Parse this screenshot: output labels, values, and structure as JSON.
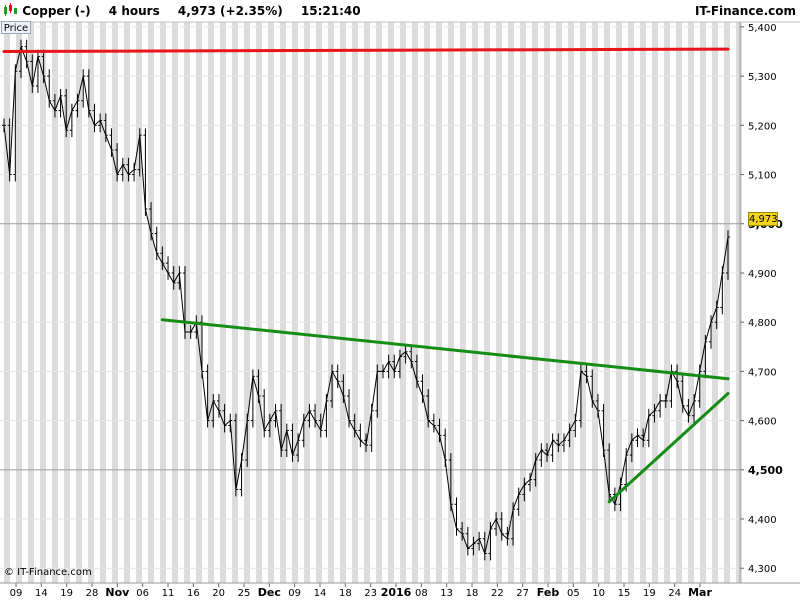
{
  "header": {
    "instrument": "Copper (-)",
    "period": "4 hours",
    "last": "4,973 (+2.35%)",
    "time": "15:21:40",
    "source": "IT-Finance.com"
  },
  "price_tag": "Price",
  "copyright": "© IT-Finance.com",
  "last_price_label": "4,973",
  "colors": {
    "resistance": "#e8141a",
    "trend": "#158c16",
    "stripe": "#dcdcdc",
    "candle": "#000000",
    "badge": "#f3d21e"
  },
  "chart_data": {
    "type": "line",
    "title": "",
    "xlabel": "",
    "ylabel": "",
    "ylim": [
      4270,
      5410
    ],
    "y_ticks": [
      "4,300",
      "4,400",
      "4,500",
      "4,600",
      "4,700",
      "4,800",
      "4,900",
      "5,000",
      "5,100",
      "5,200",
      "5,300",
      "5,400"
    ],
    "y_ticks_bold": [
      "4,500",
      "5,000"
    ],
    "x_ticks": [
      "09",
      "14",
      "19",
      "28",
      "Nov",
      "06",
      "11",
      "16",
      "20",
      "25",
      "Dec",
      "09",
      "14",
      "18",
      "23",
      "2016",
      "08",
      "13",
      "18",
      "22",
      "27",
      "Feb",
      "05",
      "10",
      "15",
      "19",
      "24",
      "Mar"
    ],
    "x_ticks_bold": [
      "Nov",
      "Dec",
      "2016",
      "Feb",
      "Mar"
    ],
    "series": [
      {
        "values": [
          5200,
          5100,
          5310,
          5360,
          5330,
          5280,
          5340,
          5300,
          5250,
          5230,
          5260,
          5190,
          5230,
          5250,
          5300,
          5230,
          5200,
          5210,
          5180,
          5150,
          5100,
          5120,
          5100,
          5110,
          5180,
          5030,
          4980,
          4940,
          4920,
          4900,
          4880,
          4900,
          4780,
          4780,
          4800,
          4700,
          4600,
          4640,
          4620,
          4590,
          4600,
          4460,
          4520,
          4600,
          4690,
          4650,
          4580,
          4600,
          4620,
          4540,
          4580,
          4530,
          4560,
          4600,
          4620,
          4600,
          4580,
          4640,
          4700,
          4680,
          4650,
          4600,
          4580,
          4560,
          4550,
          4620,
          4700,
          4700,
          4720,
          4700,
          4730,
          4740,
          4720,
          4680,
          4650,
          4600,
          4590,
          4570,
          4520,
          4430,
          4380,
          4370,
          4340,
          4350,
          4360,
          4330,
          4380,
          4400,
          4370,
          4360,
          4420,
          4450,
          4470,
          4480,
          4520,
          4540,
          4530,
          4560,
          4550,
          4560,
          4580,
          4600,
          4700,
          4690,
          4640,
          4620,
          4540,
          4450,
          4430,
          4470,
          4530,
          4560,
          4570,
          4560,
          4610,
          4620,
          4640,
          4640,
          4700,
          4680,
          4630,
          4610,
          4640,
          4700,
          4760,
          4800,
          4830,
          4900,
          4973
        ]
      }
    ],
    "annotations": [
      {
        "name": "resistance",
        "color": "#e8141a",
        "points": [
          [
            0.0,
            5350
          ],
          [
            128.0,
            5355
          ]
        ]
      },
      {
        "name": "neckline",
        "color": "#158c16",
        "points": [
          [
            28.0,
            4805
          ],
          [
            128.0,
            4685
          ]
        ]
      },
      {
        "name": "support",
        "color": "#158c16",
        "points": [
          [
            107.0,
            4435
          ],
          [
            128.0,
            4655
          ]
        ]
      }
    ]
  }
}
